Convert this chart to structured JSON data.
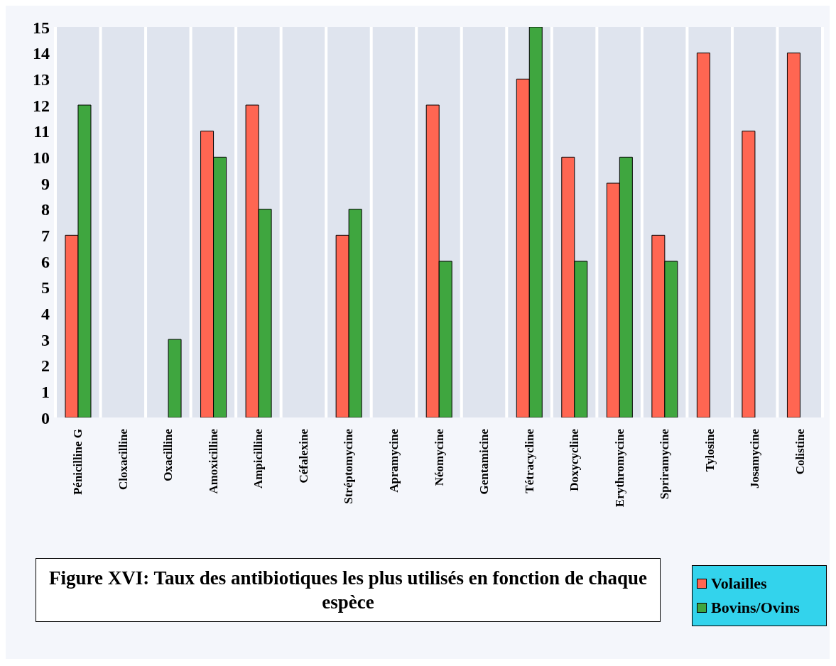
{
  "chart_data": {
    "type": "bar",
    "title": "Figure XVI: Taux des antibiotiques les plus utilisés en fonction de chaque espèce",
    "categories": [
      "Pénicilline G",
      "Cloxacilline",
      "Oxacilline",
      "Amoxicilline",
      "Ampicilline",
      "Céfalexine",
      "Stréptomycine",
      "Apramycine",
      "Néomycine",
      "Gentamicine",
      "Tétracycline",
      "Doxycycline",
      "Erythromycine",
      "Spriramycine",
      "Tylosine",
      "Josamycine",
      "Colistine"
    ],
    "series": [
      {
        "name": "Volailles",
        "color": "#ff6652",
        "values": [
          7,
          0,
          0,
          11,
          12,
          0,
          7,
          0,
          12,
          0,
          13,
          10,
          9,
          7,
          14,
          11,
          14
        ]
      },
      {
        "name": "Bovins/Ovins",
        "color": "#3fa63f",
        "values": [
          12,
          0,
          3,
          10,
          8,
          0,
          8,
          0,
          6,
          0,
          15,
          6,
          10,
          6,
          0,
          0,
          0
        ]
      }
    ],
    "ylim": [
      0,
      15
    ],
    "yticks": [
      0,
      1,
      2,
      3,
      4,
      5,
      6,
      7,
      8,
      9,
      10,
      11,
      12,
      13,
      14,
      15
    ],
    "grid": "x",
    "legend": "bottom right"
  }
}
